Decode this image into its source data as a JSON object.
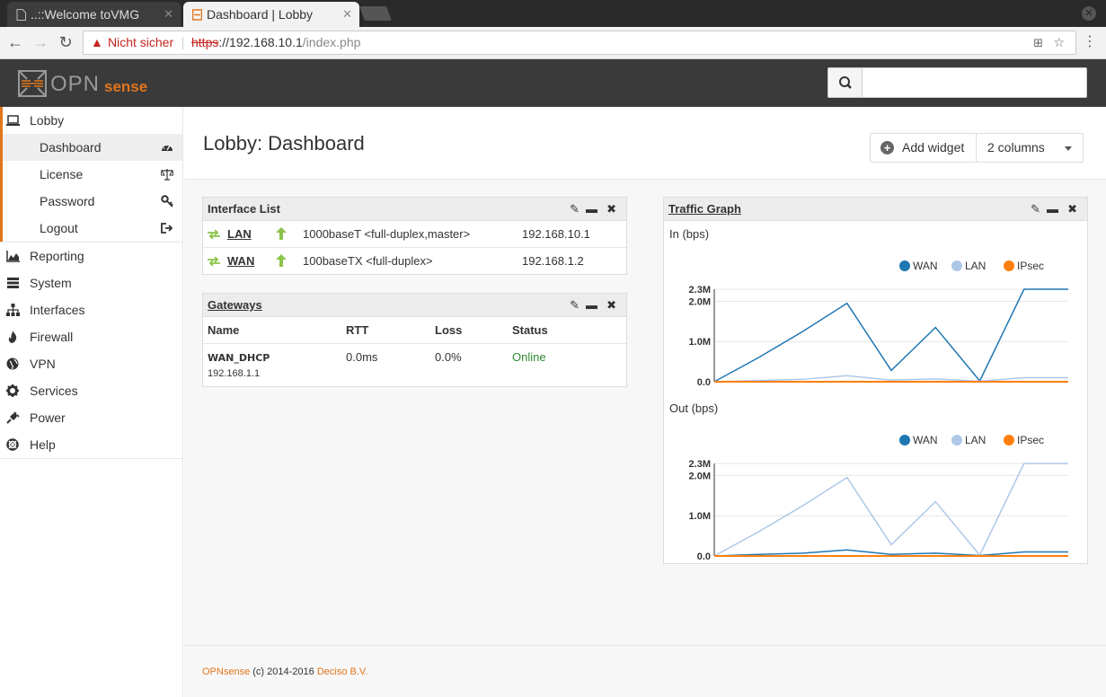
{
  "browser": {
    "tabs": [
      {
        "title": "..::Welcome toVMG",
        "active": false
      },
      {
        "title": "Dashboard | Lobby",
        "active": true
      }
    ],
    "security_label": "Nicht sicher",
    "url_proto": "https",
    "url_host": "://192.168.10.1",
    "url_path": "/index.php"
  },
  "brand": {
    "opn": "OPN",
    "sense": "sense",
    "accent": "#e1761c"
  },
  "header": {
    "search_placeholder": ""
  },
  "sidebar": {
    "top": {
      "label": "Lobby",
      "icon": "laptop-icon"
    },
    "sub": [
      {
        "label": "Dashboard",
        "icon": "dashboard-icon",
        "active": true
      },
      {
        "label": "License",
        "icon": "balance-scale-icon"
      },
      {
        "label": "Password",
        "icon": "key-icon"
      },
      {
        "label": "Logout",
        "icon": "sign-out-icon"
      }
    ],
    "items": [
      {
        "label": "Reporting",
        "icon": "area-chart-icon"
      },
      {
        "label": "System",
        "icon": "server-icon"
      },
      {
        "label": "Interfaces",
        "icon": "sitemap-icon"
      },
      {
        "label": "Firewall",
        "icon": "fire-icon"
      },
      {
        "label": "VPN",
        "icon": "globe-icon"
      },
      {
        "label": "Services",
        "icon": "cog-icon"
      },
      {
        "label": "Power",
        "icon": "plug-icon"
      },
      {
        "label": "Help",
        "icon": "life-ring-icon"
      }
    ]
  },
  "page": {
    "title": "Lobby: Dashboard",
    "add_widget": "Add widget",
    "columns": "2 columns"
  },
  "interface_list": {
    "title": "Interface List",
    "rows": [
      {
        "name": "LAN",
        "media": "1000baseT <full-duplex,master>",
        "ip": "192.168.10.1",
        "status": "up"
      },
      {
        "name": "WAN",
        "media": "100baseTX <full-duplex>",
        "ip": "192.168.1.2",
        "status": "up"
      }
    ]
  },
  "gateways": {
    "title": "Gateways",
    "headers": {
      "name": "Name",
      "rtt": "RTT",
      "loss": "Loss",
      "status": "Status"
    },
    "rows": [
      {
        "name": "WAN_DHCP",
        "address": "192.168.1.1",
        "rtt": "0.0ms",
        "loss": "0.0%",
        "status": "Online",
        "status_color": "#2e8b2e"
      }
    ]
  },
  "traffic": {
    "title": "Traffic Graph",
    "in_label": "In (bps)",
    "out_label": "Out (bps)"
  },
  "chart_data": [
    {
      "type": "line",
      "title": "In (bps)",
      "ylim": [
        0,
        2300000
      ],
      "yticks": [
        "0.0",
        "1.0M",
        "2.0M",
        "2.3M"
      ],
      "legend": "top-right",
      "x": [
        0,
        1,
        2,
        3,
        4,
        5,
        6,
        7,
        8
      ],
      "series": [
        {
          "name": "WAN",
          "color": "#1f77b4",
          "values": [
            0,
            600000,
            1250000,
            1950000,
            280000,
            1350000,
            20000,
            2300000,
            2300000
          ]
        },
        {
          "name": "LAN",
          "color": "#aec7e8",
          "values": [
            0,
            30000,
            60000,
            150000,
            40000,
            70000,
            10000,
            100000,
            100000
          ]
        },
        {
          "name": "IPsec",
          "color": "#ff7f0e",
          "values": [
            0,
            0,
            0,
            0,
            0,
            0,
            0,
            0,
            0
          ]
        }
      ]
    },
    {
      "type": "line",
      "title": "Out (bps)",
      "ylim": [
        0,
        2300000
      ],
      "yticks": [
        "0.0",
        "1.0M",
        "2.0M",
        "2.3M"
      ],
      "legend": "top-right",
      "x": [
        0,
        1,
        2,
        3,
        4,
        5,
        6,
        7,
        8
      ],
      "series": [
        {
          "name": "WAN",
          "color": "#1f77b4",
          "values": [
            0,
            40000,
            70000,
            150000,
            40000,
            70000,
            10000,
            100000,
            100000
          ]
        },
        {
          "name": "LAN",
          "color": "#aec7e8",
          "values": [
            0,
            600000,
            1250000,
            1950000,
            280000,
            1350000,
            20000,
            2300000,
            2300000
          ]
        },
        {
          "name": "IPsec",
          "color": "#ff7f0e",
          "values": [
            0,
            0,
            0,
            0,
            0,
            0,
            0,
            0,
            0
          ]
        }
      ]
    }
  ],
  "footer": {
    "brand": "OPNsense",
    "copy": " (c) 2014-2016 ",
    "company": "Deciso B.V."
  }
}
